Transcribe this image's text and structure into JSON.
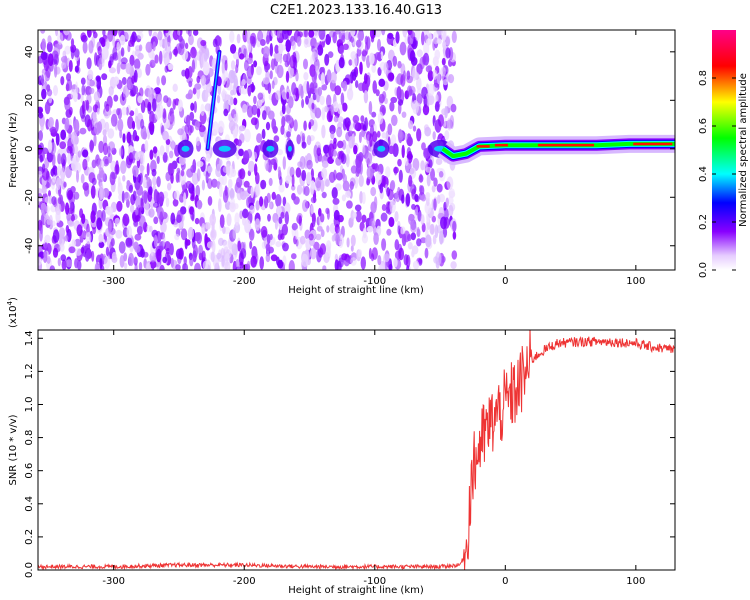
{
  "title": "C2E1.2023.133.16.40.G13",
  "chart_data": [
    {
      "type": "heatmap",
      "xlabel": "Height of straight line (km)",
      "ylabel": "Frequency (Hz)",
      "xlim": [
        -358,
        130
      ],
      "ylim": [
        -50,
        49
      ],
      "x_ticks": [
        -300,
        -200,
        -100,
        0,
        100
      ],
      "y_ticks": [
        -40,
        -20,
        0,
        20,
        40
      ],
      "colorbar": {
        "label": "Normalized spectral amplitude",
        "range": [
          0,
          1
        ],
        "ticks": [
          "0.0",
          "0.2",
          "0.4",
          "0.6",
          "0.8"
        ],
        "colors": [
          "#ffffff",
          "#e6ccff",
          "#8800ff",
          "#0000ff",
          "#00ffff",
          "#00ff00",
          "#ffff00",
          "#ff0000",
          "#ff0088"
        ]
      },
      "features": {
        "noise_region_x": [
          -358,
          -45
        ],
        "signal_band": [
          {
            "x": -48,
            "y": 0
          },
          {
            "x": -40,
            "y": -3
          },
          {
            "x": -30,
            "y": -2
          },
          {
            "x": -20,
            "y": 1
          },
          {
            "x": 0,
            "y": 1.5
          },
          {
            "x": 40,
            "y": 1.5
          },
          {
            "x": 70,
            "y": 1.5
          },
          {
            "x": 95,
            "y": 2
          },
          {
            "x": 130,
            "y": 2
          }
        ],
        "streak": [
          {
            "x": -228,
            "y": 0
          },
          {
            "x": -219,
            "y": 40
          }
        ]
      }
    },
    {
      "type": "line",
      "xlabel": "Height of straight line (km)",
      "ylabel": "SNR (10 * v/v)",
      "y_multiplier": "(x10",
      "y_multiplier_exp": "4",
      "y_multiplier_close": ")",
      "xlim": [
        -358,
        130
      ],
      "ylim": [
        0,
        1.45
      ],
      "x_ticks": [
        -300,
        -200,
        -100,
        0,
        100
      ],
      "y_ticks": [
        "0.0",
        "0.2",
        "0.4",
        "0.6",
        "0.8",
        "1.0",
        "1.2",
        "1.4"
      ],
      "series": [
        {
          "color": "#ee3333",
          "points": [
            [
              -358,
              0.02
            ],
            [
              -300,
              0.02
            ],
            [
              -250,
              0.03
            ],
            [
              -200,
              0.03
            ],
            [
              -150,
              0.02
            ],
            [
              -100,
              0.02
            ],
            [
              -50,
              0.02
            ],
            [
              -35,
              0.03
            ],
            [
              -30,
              0.1
            ],
            [
              -26,
              0.55
            ],
            [
              -20,
              0.75
            ],
            [
              -10,
              0.9
            ],
            [
              0,
              1.0
            ],
            [
              10,
              1.1
            ],
            [
              20,
              1.27
            ],
            [
              30,
              1.33
            ],
            [
              40,
              1.37
            ],
            [
              60,
              1.38
            ],
            [
              80,
              1.38
            ],
            [
              100,
              1.37
            ],
            [
              110,
              1.35
            ],
            [
              130,
              1.33
            ]
          ]
        }
      ]
    }
  ]
}
